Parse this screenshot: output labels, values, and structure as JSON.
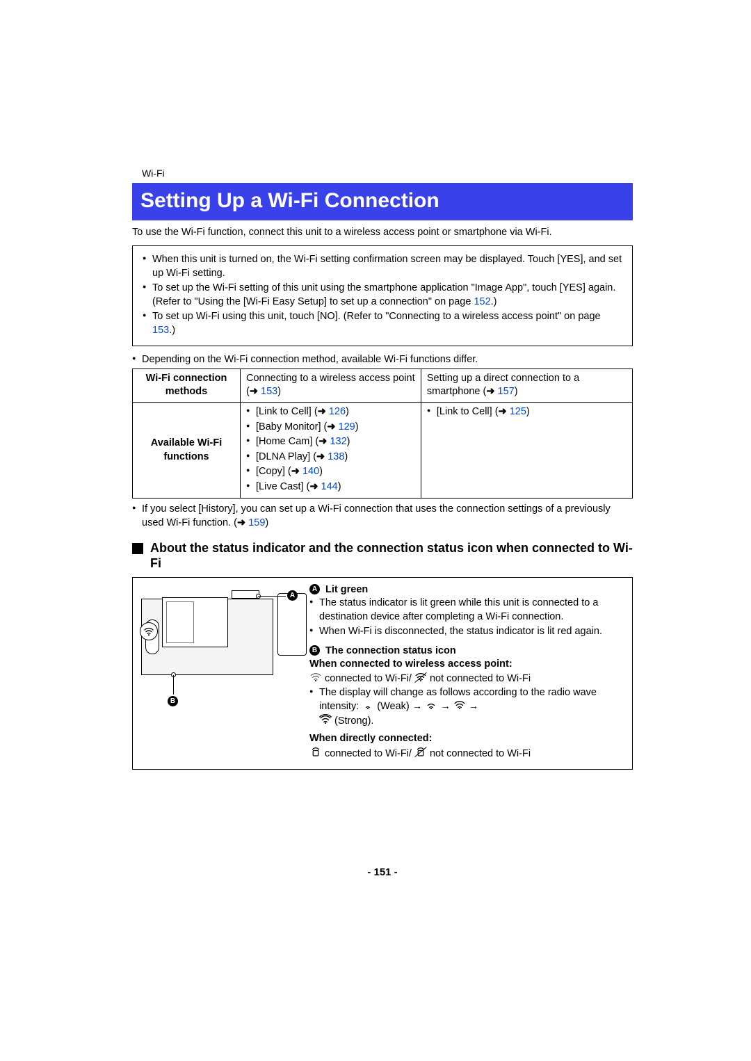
{
  "breadcrumb": "Wi-Fi",
  "title": "Setting Up a Wi-Fi Connection",
  "intro": "To use the Wi-Fi function, connect this unit to a wireless access point or smartphone via Wi-Fi.",
  "box_bullets": [
    {
      "pre": "When this unit is turned on, the Wi-Fi setting confirmation screen may be displayed. Touch [YES], and set up Wi-Fi setting."
    },
    {
      "pre": "To set up the Wi-Fi setting of this unit using the smartphone application \"Image App\", touch [YES] again. (Refer to \"Using the [Wi-Fi Easy Setup] to set up a connection\" on page ",
      "ref": "152",
      "post": ".)"
    },
    {
      "pre": "To set up Wi-Fi using this unit, touch [NO]. (Refer to \"Connecting to a wireless access point\" on page ",
      "ref": "153",
      "post": ".)"
    }
  ],
  "depending_note": "Depending on the Wi-Fi connection method, available Wi-Fi functions differ.",
  "table": {
    "row1_hdr": "Wi-Fi connection methods",
    "row1_c1_pre": "Connecting to a wireless access point (",
    "row1_c1_ref": "153",
    "row1_c1_post": ")",
    "row1_c2_pre": "Setting up a direct connection to a smartphone (",
    "row1_c2_ref": "157",
    "row1_c2_post": ")",
    "row2_hdr": "Available Wi-Fi functions",
    "row2_c1_items": [
      {
        "label": "[Link to Cell] (",
        "ref": "126",
        "post": ")"
      },
      {
        "label": "[Baby Monitor] (",
        "ref": "129",
        "post": ")"
      },
      {
        "label": "[Home Cam] (",
        "ref": "132",
        "post": ")"
      },
      {
        "label": "[DLNA Play] (",
        "ref": "138",
        "post": ")"
      },
      {
        "label": "[Copy] (",
        "ref": "140",
        "post": ")"
      },
      {
        "label": "[Live Cast] (",
        "ref": "144",
        "post": ")"
      }
    ],
    "row2_c2_items": [
      {
        "label": "[Link to Cell] (",
        "ref": "125",
        "post": ")"
      }
    ]
  },
  "history_note_pre": "If you select [History], you can set up a Wi-Fi connection that uses the connection settings of a previously used Wi-Fi function. (",
  "history_note_ref": "159",
  "history_note_post": ")",
  "section_heading": "About the status indicator and the connection status icon when connected to Wi-Fi",
  "status": {
    "a_label": "A",
    "b_label": "B",
    "a_title": "Lit green",
    "a_b1": "The status indicator is lit green while this unit is connected to a destination device after completing a Wi-Fi connection.",
    "a_b2": "When Wi-Fi is disconnected, the status indicator is lit red again.",
    "b_title": "The connection status icon",
    "b_sub1": "When connected to wireless access point:",
    "b_line1_a": " connected to Wi-Fi/ ",
    "b_line1_b": " not connected to Wi-Fi",
    "b_b1_pre": "The display will change as follows according to the radio wave intensity:   ",
    "b_weak": "(Weak)",
    "b_strong": "(Strong).",
    "b_sub2": "When directly connected:",
    "b_line2_a": " connected to Wi-Fi/ ",
    "b_line2_b": "  not connected to Wi-Fi"
  },
  "arrow_glyph": "→",
  "right_arrow": "➜",
  "page_number": "- 151 -",
  "colors": {
    "title_bg": "#3941e8",
    "title_fg": "#ffffff",
    "link": "#0047ce",
    "text": "#000000",
    "bg": "#ffffff"
  }
}
